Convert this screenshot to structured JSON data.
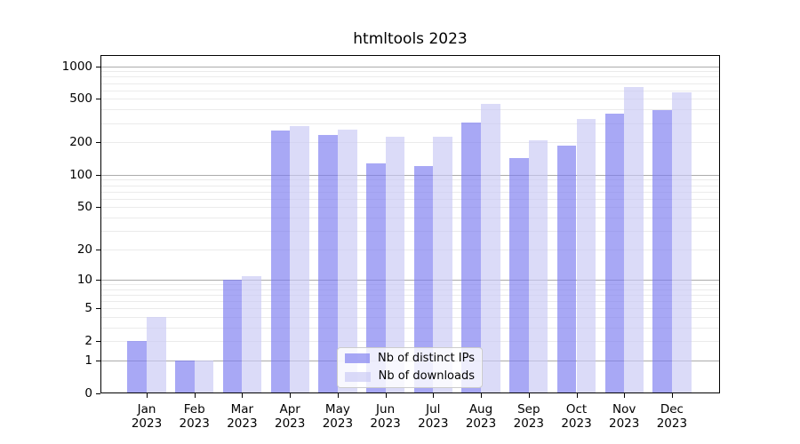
{
  "chart_data": {
    "type": "bar",
    "title": "htmltools 2023",
    "categories": [
      "Jan",
      "Feb",
      "Mar",
      "Apr",
      "May",
      "Jun",
      "Jul",
      "Aug",
      "Sep",
      "Oct",
      "Nov",
      "Dec"
    ],
    "x_tick_year": "2023",
    "series": [
      {
        "name": "Nb of distinct IPs",
        "color": "#7a7af0",
        "opacity": 0.65,
        "values": [
          2,
          1,
          10,
          258,
          235,
          128,
          120,
          305,
          144,
          185,
          370,
          398
        ]
      },
      {
        "name": "Nb of downloads",
        "color": "#c8c8f5",
        "opacity": 0.65,
        "values": [
          4,
          1,
          11,
          281,
          262,
          225,
          224,
          450,
          210,
          328,
          640,
          576
        ]
      }
    ],
    "y_scale": "log10(1+x)",
    "y_ticks": [
      1000,
      500,
      200,
      100,
      50,
      20,
      10,
      5,
      2,
      1,
      0
    ],
    "y_minor_gridlines": [
      2,
      3,
      4,
      5,
      6,
      7,
      8,
      9,
      20,
      30,
      40,
      50,
      60,
      70,
      80,
      90,
      200,
      300,
      400,
      500,
      600,
      700,
      800,
      900
    ],
    "y_major_gridlines": [
      1,
      10,
      100,
      1000
    ],
    "y_max": 1265,
    "ylim": [
      0,
      1265
    ],
    "grid": true,
    "legend_position": "bottom-center",
    "colors": {
      "background": "#ffffff",
      "axis": "#000000",
      "grid_minor": "#ebebeb",
      "grid_major": "#ababab",
      "legend_border": "#cccccc"
    }
  }
}
